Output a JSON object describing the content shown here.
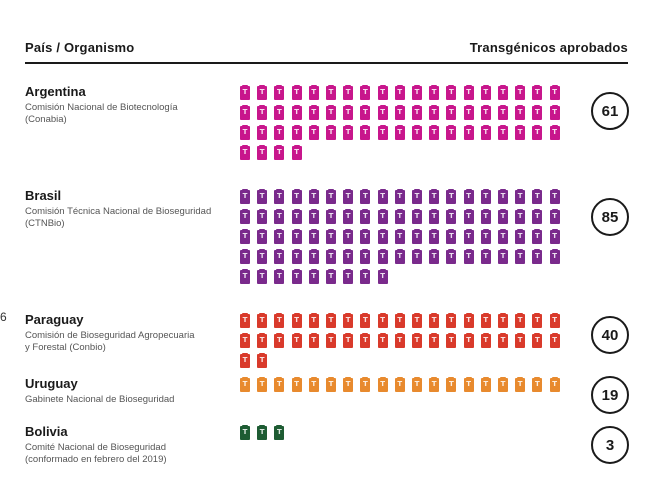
{
  "header": {
    "left": "País / Organismo",
    "right": "Transgénicos aprobados"
  },
  "side_mark": "6",
  "chart_data": {
    "type": "table",
    "title": "",
    "rows": [
      {
        "country": "Argentina",
        "organism_lines": [
          "Comisión Nacional de Biotecnología",
          "(Conabia)"
        ],
        "value": 61,
        "color": "#c8168c"
      },
      {
        "country": "Brasil",
        "organism_lines": [
          "Comisión Técnica Nacional de Bioseguridad",
          "(CTNBio)"
        ],
        "value": 85,
        "color": "#7a2a8c"
      },
      {
        "country": "Paraguay",
        "organism_lines": [
          "Comisión de Bioseguridad Agropecuaria",
          "y Forestal (Conbio)"
        ],
        "value": 40,
        "color": "#d93a2b"
      },
      {
        "country": "Uruguay",
        "organism_lines": [
          "Gabinete Nacional de Bioseguridad"
        ],
        "value": 19,
        "color": "#e88a2e"
      },
      {
        "country": "Bolivia",
        "organism_lines": [
          "Comité Nacional de Bioseguridad",
          "(conformado en febrero del 2019)"
        ],
        "value": 3,
        "color": "#1e5c33"
      }
    ]
  }
}
